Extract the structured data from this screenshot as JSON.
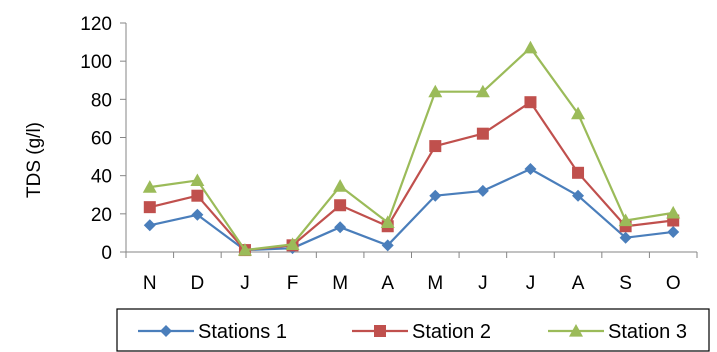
{
  "chart_data": {
    "type": "line",
    "title": "",
    "xlabel": "",
    "ylabel": "TDS (g/l)",
    "categories": [
      "N",
      "D",
      "J",
      "F",
      "M",
      "A",
      "M",
      "J",
      "J",
      "A",
      "S",
      "O"
    ],
    "ylim": [
      0,
      120
    ],
    "yticks": [
      0,
      20,
      40,
      60,
      80,
      100,
      120
    ],
    "grid": false,
    "legend_position": "bottom",
    "series": [
      {
        "name": "Stations 1",
        "color": "#4a7ebb",
        "marker": "diamond",
        "values": [
          14,
          19.5,
          1,
          2,
          13,
          3.5,
          29.5,
          32,
          43.5,
          29.5,
          7.5,
          10.5
        ]
      },
      {
        "name": "Station 2",
        "color": "#c0504d",
        "marker": "square",
        "values": [
          23.5,
          29.5,
          1,
          3.5,
          24.5,
          13.5,
          55.5,
          62,
          78.5,
          41.5,
          13.5,
          16.5
        ]
      },
      {
        "name": "Station 3",
        "color": "#9bbb59",
        "marker": "triangle",
        "values": [
          34,
          37.5,
          1,
          4,
          34.5,
          15.5,
          84,
          84,
          107,
          72.5,
          16.5,
          20.5
        ]
      }
    ]
  }
}
